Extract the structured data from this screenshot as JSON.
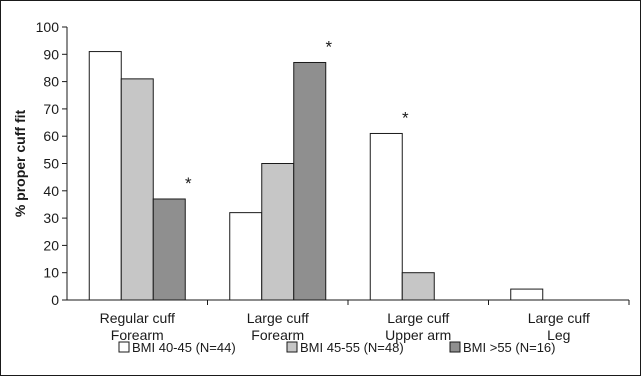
{
  "chart_data": {
    "type": "bar",
    "ylabel": "% proper cuff fit",
    "ylim": [
      0,
      100
    ],
    "yticks": [
      0,
      10,
      20,
      30,
      40,
      50,
      60,
      70,
      80,
      90,
      100
    ],
    "categories": [
      [
        "Regular cuff",
        "Forearm"
      ],
      [
        "Large cuff",
        "Forearm"
      ],
      [
        "Large cuff",
        "Upper arm"
      ],
      [
        "Large cuff",
        "Leg"
      ]
    ],
    "series": [
      {
        "name": "BMI 40-45 (N=44)",
        "color": "#ffffff",
        "values": [
          91,
          32,
          61,
          4
        ]
      },
      {
        "name": "BMI 45-55 (N=48)",
        "color": "#c6c6c6",
        "values": [
          81,
          50,
          10,
          0
        ]
      },
      {
        "name": "BMI >55 (N=16)",
        "color": "#8f8f8f",
        "values": [
          37,
          87,
          0,
          0
        ]
      }
    ],
    "annotations": [
      {
        "text": "*",
        "category": 0,
        "series": 2
      },
      {
        "text": "*",
        "category": 1,
        "series": 2
      },
      {
        "text": "*",
        "category": 2,
        "series": 0
      }
    ],
    "legend_position": "bottom",
    "grid": false
  }
}
